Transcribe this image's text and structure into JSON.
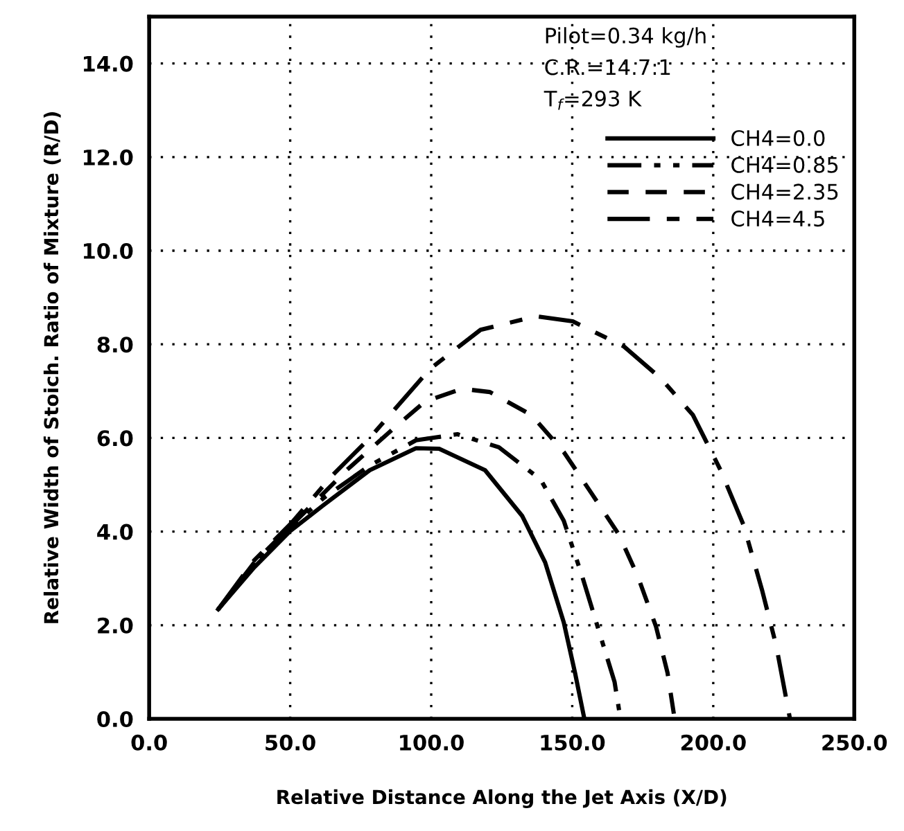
{
  "chart_data": {
    "type": "line",
    "xlabel": "Relative Distance Along the Jet Axis (X/D)",
    "ylabel": "Relative Width of Stoich. Ratio of Mixture (R/D)",
    "annotations": [
      "Pilot=0.34 kg/h",
      "C.R.=14.7:1",
      "T$_{f}$=293 K"
    ],
    "xlim": [
      0,
      250
    ],
    "ylim": [
      0,
      15
    ],
    "xticks": [
      {
        "value": 0,
        "label": "0.0"
      },
      {
        "value": 50,
        "label": "50.0"
      },
      {
        "value": 100,
        "label": "100.0"
      },
      {
        "value": 150,
        "label": "150.0"
      },
      {
        "value": 200,
        "label": "200.0"
      },
      {
        "value": 250,
        "label": "250.0"
      }
    ],
    "yticks": [
      {
        "value": 0,
        "label": "0.0"
      },
      {
        "value": 2,
        "label": "2.0"
      },
      {
        "value": 4,
        "label": "4.0"
      },
      {
        "value": 6,
        "label": "6.0"
      },
      {
        "value": 8,
        "label": "8.0"
      },
      {
        "value": 10,
        "label": "10.0"
      },
      {
        "value": 12,
        "label": "12.0"
      },
      {
        "value": 14,
        "label": "14.0"
      }
    ],
    "grid": true,
    "legend": "top right",
    "marker": "none",
    "series": [
      {
        "name": "CH4=0.0",
        "color": "#000000",
        "line_style": "solid",
        "x": [
          24.5,
          37.3,
          50,
          61.9,
          78.2,
          94.6,
          102.8,
          119.1,
          132.3,
          140.4,
          147,
          151,
          154.3
        ],
        "values": [
          2.34,
          3.24,
          4.01,
          4.57,
          5.31,
          5.78,
          5.77,
          5.31,
          4.33,
          3.34,
          2.06,
          0.98,
          0
        ]
      },
      {
        "name": "CH4=0.85",
        "color": "#000000",
        "line_style": "dashdot",
        "x": [
          24.5,
          37.3,
          50,
          61.9,
          78.2,
          94.6,
          109.3,
          124,
          138.8,
          147,
          153.5,
          160,
          165,
          167.1
        ],
        "values": [
          2.34,
          3.29,
          4.08,
          4.72,
          5.41,
          5.95,
          6.08,
          5.8,
          5.11,
          4.23,
          3.05,
          1.77,
          0.79,
          0
        ]
      },
      {
        "name": "CH4=2.35",
        "color": "#000000",
        "line_style": "dashed",
        "x": [
          24.5,
          37.3,
          50.4,
          70,
          86.4,
          97.9,
          111,
          120.8,
          135.5,
          147,
          156.8,
          166.6,
          173.2,
          179.7,
          183.8,
          186.3
        ],
        "values": [
          2.34,
          3.34,
          4.13,
          5.31,
          6.19,
          6.78,
          7.05,
          6.98,
          6.49,
          5.7,
          4.82,
          3.93,
          3.05,
          1.97,
          0.98,
          0
        ]
      },
      {
        "name": "CH4=4.5",
        "color": "#000000",
        "line_style": "longdash",
        "x": [
          24.5,
          37.3,
          50.4,
          65.1,
          78.2,
          99.5,
          117.5,
          137.2,
          150.2,
          168.2,
          181.3,
          192.8,
          202.6,
          210.8,
          217.3,
          222.3,
          227.2
        ],
        "values": [
          2.34,
          3.39,
          4.18,
          5.21,
          6,
          7.47,
          8.31,
          8.6,
          8.49,
          7.96,
          7.28,
          6.49,
          5.31,
          4.13,
          2.75,
          1.57,
          0
        ]
      }
    ]
  }
}
